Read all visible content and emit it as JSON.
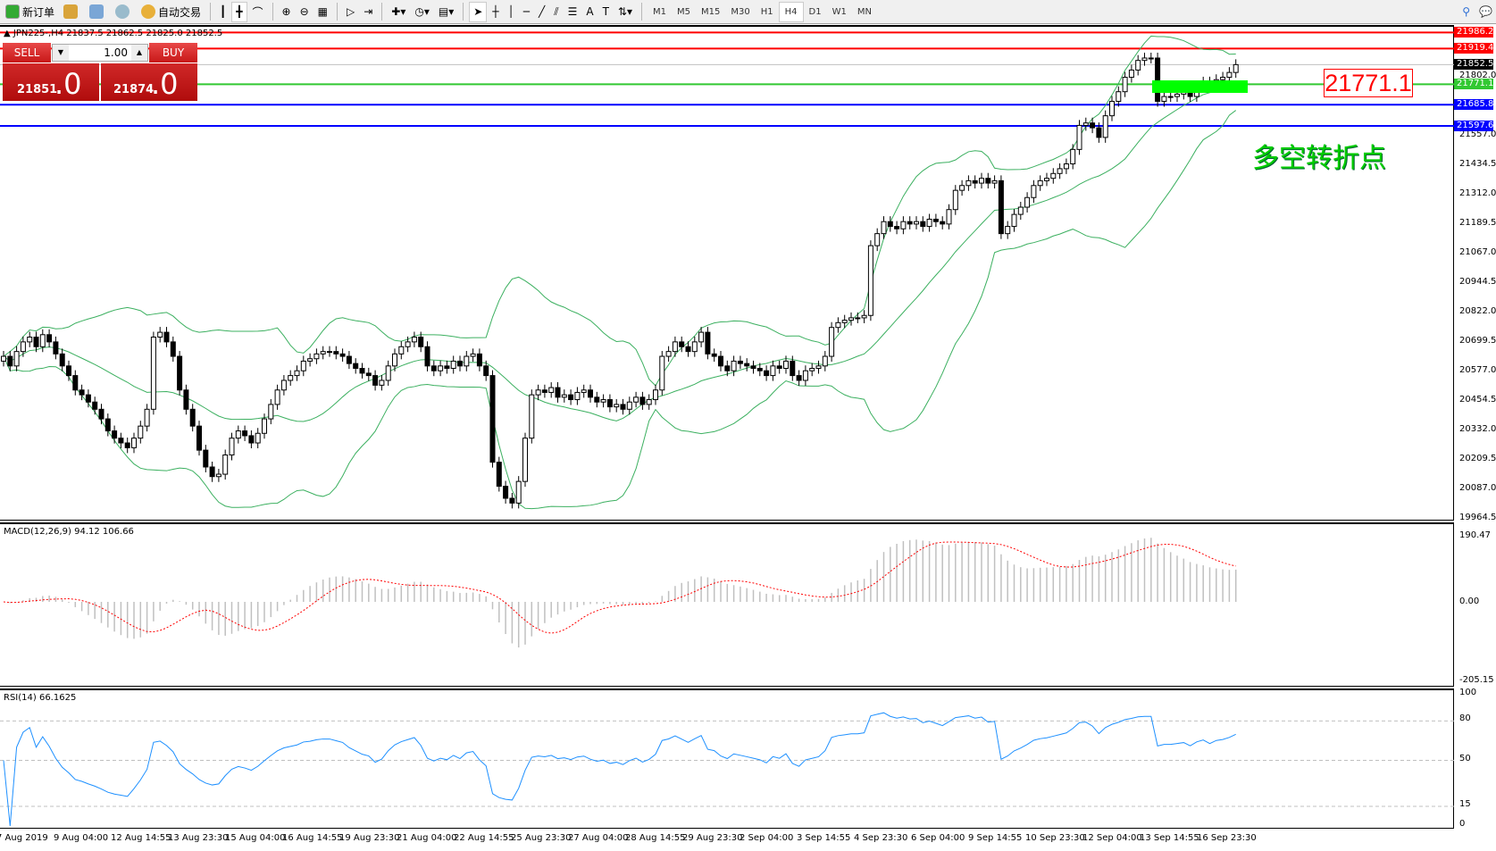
{
  "toolbar": {
    "new_order": "新订单",
    "auto_trading": "自动交易",
    "timeframes": [
      "M1",
      "M5",
      "M15",
      "M30",
      "H1",
      "H4",
      "D1",
      "W1",
      "MN"
    ],
    "active_timeframe": "H4"
  },
  "chart": {
    "header": "JPN225-,H4  21837.5 21862.5 21825.0 21852.5",
    "symbol": "JPN225-",
    "timeframe": "H4"
  },
  "trade_panel": {
    "sell_label": "SELL",
    "buy_label": "BUY",
    "lot": "1.00",
    "sell_price_main": "21851",
    "sell_price_big": ".0",
    "buy_price_main": "21874",
    "buy_price_big": ".0"
  },
  "annotation": {
    "text": "多空转折点",
    "price_label": "21771.1",
    "zone_color": "#00ff00"
  },
  "price_axis": {
    "ticks": [
      "21802.0",
      "21557.0",
      "21434.5",
      "21312.0",
      "21189.5",
      "21067.0",
      "20944.5",
      "20822.0",
      "20699.5",
      "20577.0",
      "20454.5",
      "20332.0",
      "20209.5",
      "20087.0",
      "19964.5"
    ]
  },
  "hlines": [
    {
      "price": 21986.2,
      "label": "21986.2",
      "color": "#ff0000"
    },
    {
      "price": 21919.4,
      "label": "21919.4",
      "color": "#ff0000"
    },
    {
      "price": 21852.5,
      "label": "21852.5",
      "color": "#000000"
    },
    {
      "price": 21771.1,
      "label": "21771.1",
      "color": "#32c832"
    },
    {
      "price": 21685.8,
      "label": "21685.8",
      "color": "#0000ff"
    },
    {
      "price": 21597.6,
      "label": "21597.6",
      "color": "#0000ff"
    }
  ],
  "macd": {
    "label": "MACD(12,26,9) 94.12 106.66",
    "ticks": [
      "190.47",
      "0.00",
      "-205.15"
    ]
  },
  "rsi": {
    "label": "RSI(14) 66.1625",
    "ticks": [
      "100",
      "80",
      "50",
      "15",
      "0"
    ],
    "levels": [
      80,
      50,
      15
    ]
  },
  "time_axis": [
    "7 Aug 2019",
    "9 Aug 04:00",
    "12 Aug 14:55",
    "13 Aug 23:30",
    "15 Aug 04:00",
    "16 Aug 14:55",
    "19 Aug 23:30",
    "21 Aug 04:00",
    "22 Aug 14:55",
    "25 Aug 23:30",
    "27 Aug 04:00",
    "28 Aug 14:55",
    "29 Aug 23:30",
    "2 Sep 04:00",
    "3 Sep 14:55",
    "4 Sep 23:30",
    "6 Sep 04:00",
    "9 Sep 14:55",
    "10 Sep 23:30",
    "12 Sep 04:00",
    "13 Sep 14:55",
    "16 Sep 23:30"
  ],
  "chart_data": {
    "type": "candlestick",
    "ylim": [
      19964.5,
      21986.2
    ],
    "closes": [
      20640,
      20600,
      20660,
      20700,
      20720,
      20680,
      20730,
      20700,
      20650,
      20600,
      20560,
      20500,
      20480,
      20450,
      20420,
      20380,
      20330,
      20300,
      20280,
      20260,
      20300,
      20350,
      20420,
      20720,
      20740,
      20700,
      20640,
      20500,
      20420,
      20350,
      20250,
      20180,
      20140,
      20150,
      20230,
      20300,
      20330,
      20310,
      20280,
      20320,
      20380,
      20440,
      20500,
      20540,
      20560,
      20580,
      20620,
      20630,
      20650,
      20660,
      20660,
      20650,
      20640,
      20610,
      20590,
      20570,
      20560,
      20520,
      20540,
      20600,
      20650,
      20680,
      20700,
      20720,
      20680,
      20600,
      20580,
      20600,
      20590,
      20620,
      20600,
      20640,
      20650,
      20600,
      20560,
      20200,
      20100,
      20050,
      20030,
      20120,
      20300,
      20480,
      20500,
      20490,
      20510,
      20470,
      20480,
      20460,
      20490,
      20500,
      20470,
      20450,
      20460,
      20430,
      20440,
      20420,
      20450,
      20470,
      20440,
      20460,
      20500,
      20640,
      20660,
      20700,
      20680,
      20660,
      20700,
      20740,
      20650,
      20640,
      20600,
      20580,
      20620,
      20610,
      20600,
      20590,
      20580,
      20560,
      20600,
      20590,
      20620,
      20560,
      20540,
      20580,
      20590,
      20600,
      20640,
      20760,
      20780,
      20790,
      20800,
      20800,
      20810,
      21100,
      21150,
      21200,
      21180,
      21170,
      21200,
      21190,
      21200,
      21180,
      21210,
      21200,
      21190,
      21250,
      21330,
      21350,
      21370,
      21360,
      21380,
      21360,
      21370,
      21150,
      21180,
      21230,
      21260,
      21300,
      21350,
      21370,
      21380,
      21400,
      21420,
      21440,
      21500,
      21600,
      21610,
      21590,
      21550,
      21640,
      21700,
      21740,
      21800,
      21830,
      21870,
      21880,
      21880,
      21700,
      21720,
      21720,
      21730,
      21740,
      21720,
      21760,
      21780,
      21760,
      21790,
      21800,
      21820,
      21852.5
    ]
  }
}
